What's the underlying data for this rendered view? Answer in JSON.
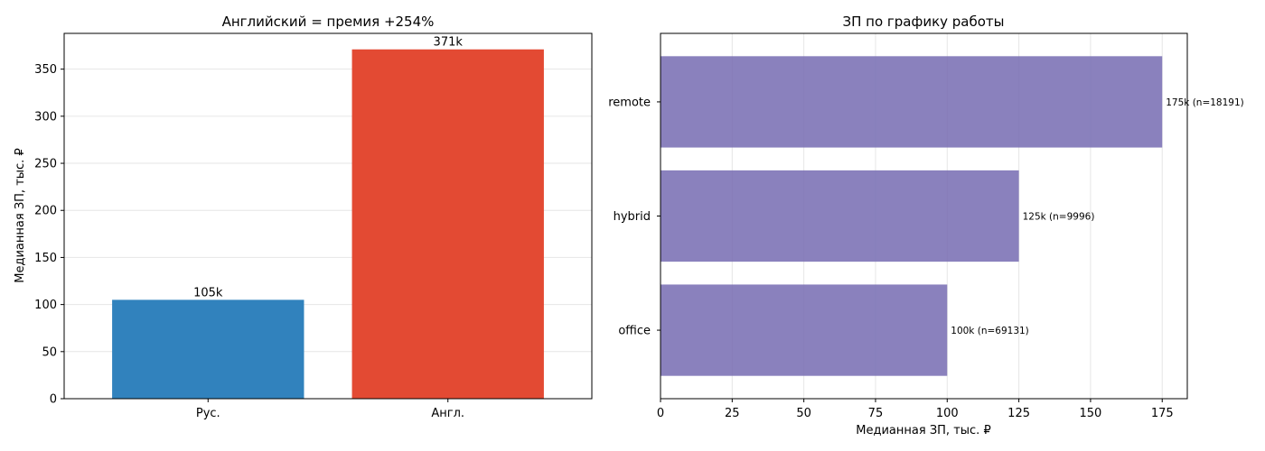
{
  "chart_data": [
    {
      "type": "bar",
      "title": "Английский = премия +254%",
      "xlabel": "",
      "ylabel": "Медианная ЗП, тыс. ₽",
      "categories": [
        "Рус.",
        "Англ."
      ],
      "values": [
        105,
        371
      ],
      "value_labels": [
        "105k",
        "371k"
      ],
      "colors": [
        "#3182bd",
        "#e34a33"
      ],
      "ylim": [
        0,
        388
      ],
      "yticks": [
        0,
        50,
        100,
        150,
        200,
        250,
        300,
        350
      ],
      "grid": "y"
    },
    {
      "type": "bar",
      "orientation": "horizontal",
      "title": "ЗП по графику работы",
      "xlabel": "Медианная ЗП, тыс. ₽",
      "ylabel": "",
      "categories": [
        "office",
        "hybrid",
        "remote"
      ],
      "values": [
        100,
        125,
        175
      ],
      "value_labels": [
        "100k (n=69131)",
        "125k (n=9996)",
        "175k (n=18191)"
      ],
      "color": "#756bb1",
      "xlim": [
        0,
        183.75
      ],
      "xticks": [
        0,
        25,
        50,
        75,
        100,
        125,
        150,
        175
      ],
      "grid": "x"
    }
  ]
}
